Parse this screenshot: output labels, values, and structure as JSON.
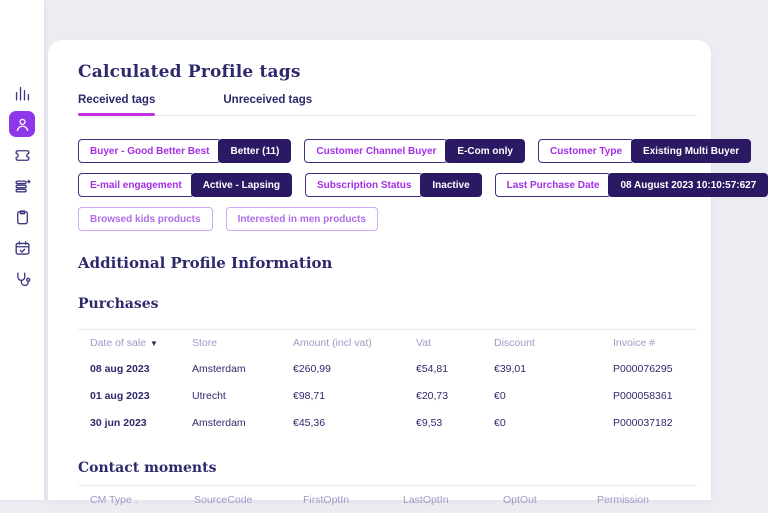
{
  "colors": {
    "page_bg": "#ecedf3",
    "accent_purple": "#8d36ea",
    "sidebar_icon": "#3c3781",
    "heading": "#2d2a6b",
    "tab_underline": "#c32ee0",
    "tag_label_text": "#a32ee6",
    "tag_label_border": "#3a3180",
    "tag_value_bg": "#2b1a63",
    "tag_value_text": "#ffffff",
    "tag_light_text": "#b06ce9",
    "tag_light_border": "#cfa9f4",
    "table_header_text": "#9e9ac6",
    "table_text": "#2d2a6b",
    "divider": "#ebebf2"
  },
  "sidebar": {
    "items": [
      {
        "name": "statistics",
        "icon": "bar-chart-icon",
        "active": false
      },
      {
        "name": "profile",
        "icon": "user-icon",
        "active": true
      },
      {
        "name": "tickets",
        "icon": "ticket-icon",
        "active": false
      },
      {
        "name": "lists",
        "icon": "list-sparkle-icon",
        "active": false
      },
      {
        "name": "clipboard",
        "icon": "clipboard-icon",
        "active": false
      },
      {
        "name": "planning",
        "icon": "calendar-check-icon",
        "active": false
      },
      {
        "name": "diagnostics",
        "icon": "stethoscope-icon",
        "active": false
      }
    ]
  },
  "main": {
    "title": "Calculated Profile tags",
    "tabs": [
      {
        "label": "Received tags",
        "active": true
      },
      {
        "label": "Unreceived tags",
        "active": false
      }
    ],
    "tag_rows": [
      [
        {
          "label": "Buyer - Good Better Best",
          "value": "Better (11)"
        },
        {
          "label": "Customer Channel Buyer",
          "value": "E-Com only"
        },
        {
          "label": "Customer Type",
          "value": "Existing Multi Buyer"
        }
      ],
      [
        {
          "label": "E-mail engagement",
          "value": "Active - Lapsing"
        },
        {
          "label": "Subscription Status",
          "value": "Inactive"
        },
        {
          "label": "Last Purchase Date",
          "value": "08 August 2023 10:10:57:627"
        }
      ],
      [
        {
          "label": "Browsed kids products"
        },
        {
          "label": "Interested in men products"
        }
      ]
    ],
    "section_title": "Additional Profile Information",
    "purchases": {
      "title": "Purchases",
      "columns": [
        "Date of sale",
        "Store",
        "Amount (incl vat)",
        "Vat",
        "Discount",
        "Invoice #"
      ],
      "sort_column": "Date of sale",
      "sort_indicator": "▼",
      "rows": [
        [
          "08 aug 2023",
          "Amsterdam",
          "€260,99",
          "€54,81",
          "€39,01",
          "P000076295"
        ],
        [
          "01 aug 2023",
          "Utrecht",
          "€98,71",
          "€20,73",
          "€0",
          "P000058361"
        ],
        [
          "30 jun 2023",
          "Amsterdam",
          "€45,36",
          "€9,53",
          "€0",
          "P000037182"
        ]
      ]
    },
    "contact_moments": {
      "title": "Contact moments",
      "columns": [
        "CM Type .",
        "SourceCode",
        "FirstOptIn",
        "LastOptIn",
        "OptOut",
        "Permission"
      ]
    }
  }
}
